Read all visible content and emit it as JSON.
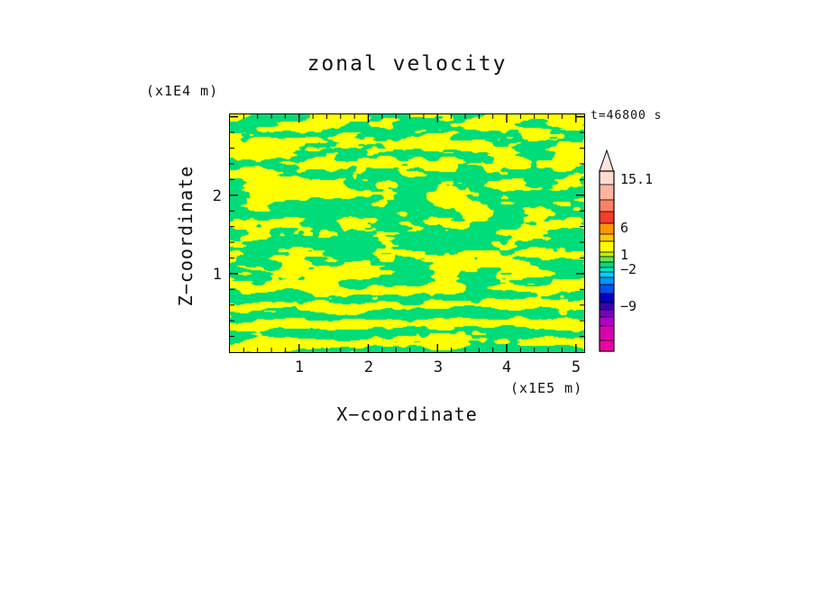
{
  "title": "zonal velocity",
  "time_label": "t=46800 s",
  "axes": {
    "x_label": "X−coordinate",
    "x_unit": "(x1E5 m)",
    "y_label": "Z−coordinate",
    "y_unit": "(x1E4 m)",
    "x_ticks": [
      "1",
      "2",
      "3",
      "4",
      "5"
    ],
    "y_ticks": [
      "1",
      "2"
    ]
  },
  "colorbar": {
    "tip_color": "#FFE6DC",
    "labels": [
      {
        "text": "15.1"
      },
      {
        "text": "6"
      },
      {
        "text": "1"
      },
      {
        "text": "−2"
      },
      {
        "text": "−9"
      }
    ],
    "segments": [
      {
        "color": "#FFDCD2",
        "h": 15
      },
      {
        "color": "#FFB4A0",
        "h": 17
      },
      {
        "color": "#FF8264",
        "h": 13
      },
      {
        "color": "#F83C28",
        "h": 13
      },
      {
        "color": "#FF9600",
        "h": 12
      },
      {
        "color": "#FFC800",
        "h": 8
      },
      {
        "color": "#FFFF00",
        "h": 12
      },
      {
        "color": "#C8F000",
        "h": 5
      },
      {
        "color": "#64E650",
        "h": 6
      },
      {
        "color": "#00DC78",
        "h": 6
      },
      {
        "color": "#00E6C8",
        "h": 5
      },
      {
        "color": "#00D2FF",
        "h": 6
      },
      {
        "color": "#0096FF",
        "h": 8
      },
      {
        "color": "#0050F0",
        "h": 10
      },
      {
        "color": "#0000C8",
        "h": 10
      },
      {
        "color": "#3C00AA",
        "h": 8
      },
      {
        "color": "#7800C8",
        "h": 8
      },
      {
        "color": "#B400C8",
        "h": 10
      },
      {
        "color": "#DC00B4",
        "h": 16
      },
      {
        "color": "#F000A0",
        "h": 12
      }
    ]
  },
  "chart_data": {
    "type": "heatmap",
    "title": "zonal velocity",
    "xlabel": "X−coordinate (x1E5 m)",
    "ylabel": "Z−coordinate (x1E4 m)",
    "time": "t=46800 s",
    "x_range": [
      0,
      5.12
    ],
    "y_range": [
      0,
      3.03
    ],
    "x_ticks_values": [
      1,
      2,
      3,
      4,
      5
    ],
    "y_ticks_values": [
      1,
      2
    ],
    "minor_tick_step": 0.2,
    "levels_labeled": [
      -9,
      -2,
      1,
      6,
      15.1
    ],
    "field_colors": {
      "low": "#00DC78",
      "high": "#FFFF00"
    },
    "description": "Two-tone turbulent velocity field: yellow cells where u is in the (1,6) contour band, green where u is in the (−2,1) band; horizontally streaked mottled texture with pronounced alternating horizontal yellow/green bands in the lower quarter of the domain."
  }
}
